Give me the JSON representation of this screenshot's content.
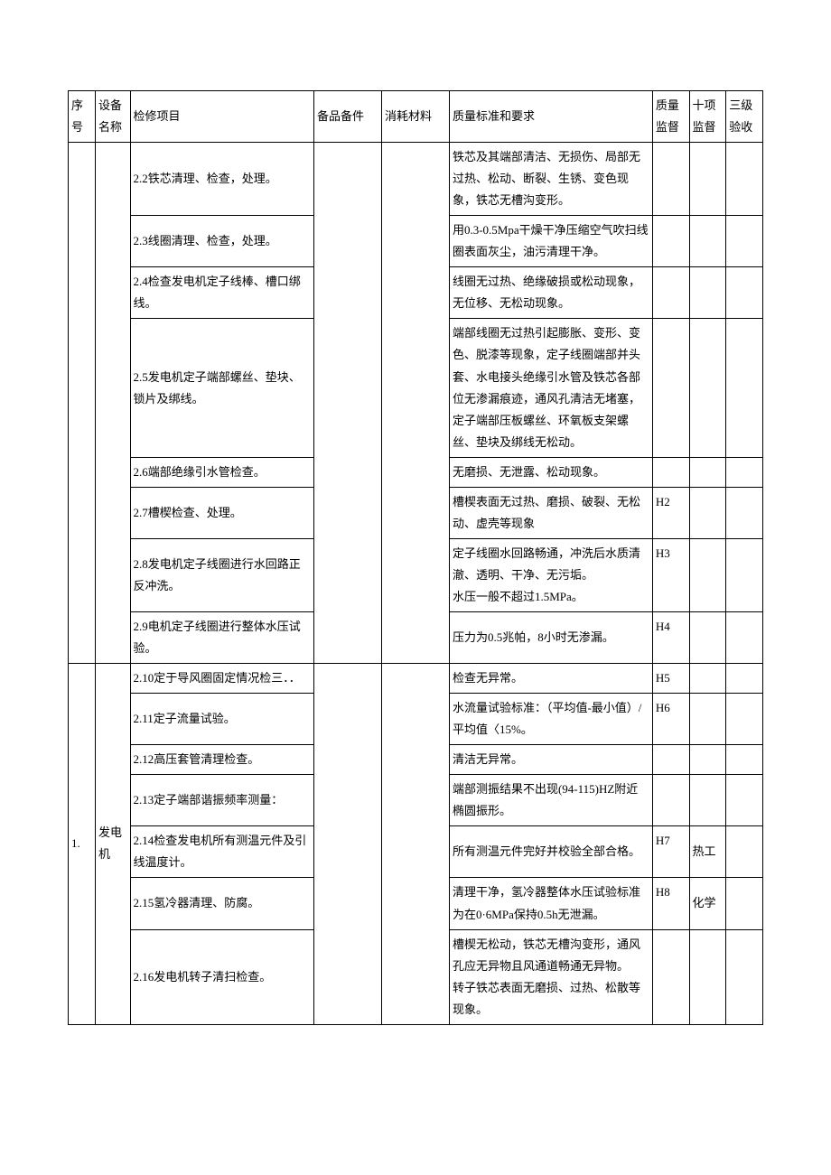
{
  "headers": {
    "seq": "序号",
    "dev": "设备名称",
    "item": "检修项目",
    "spare": "备品备件",
    "consume": "消耗材料",
    "std": "质量标准和要求",
    "q1": "质量监督",
    "q2": "十项监督",
    "q3": "三级验收"
  },
  "group1_seq": "",
  "group1_dev": "",
  "group2_seq": "1.",
  "group2_dev": "发电机",
  "rows": [
    {
      "item": "2.2铁芯清理、检查，处理。",
      "std": "铁芯及其端部清洁、无损伤、局部无过热、松动、断裂、生锈、变色现象，铁芯无槽沟变形。",
      "q1": "",
      "q2": "",
      "q3": ""
    },
    {
      "item": "2.3线圈清理、检查，处理。",
      "std": "用0.3-0.5Mpa干燥干净压缩空气吹扫线圈表面灰尘，油污清理干净。",
      "q1": "",
      "q2": "",
      "q3": ""
    },
    {
      "item": "2.4检查发电机定子线棒、槽口绑线。",
      "std": "线圈无过热、绝缘破损或松动现象，无位移、无松动现象。",
      "q1": "",
      "q2": "",
      "q3": ""
    },
    {
      "item": "2.5发电机定子端部螺丝、垫块、锁片及绑线。",
      "std": "端部线圈无过热引起膨胀、变形、变色、脱漆等现象，定子线圈端部并头套、水电接头绝缘引水管及铁芯各部位无渗漏痕迹，通风孔清洁无堵塞，定子端部压板螺丝、环氧板支架螺丝、垫块及绑线无松动。",
      "q1": "",
      "q2": "",
      "q3": ""
    },
    {
      "item": "2.6端部绝缘引水管检查。",
      "std": "无磨损、无泄露、松动现象。",
      "q1": "",
      "q2": "",
      "q3": ""
    },
    {
      "item": "2.7槽楔检查、处理。",
      "std": "槽楔表面无过热、磨损、破裂、无松动、虚壳等现象",
      "q1": "H2",
      "q2": "",
      "q3": ""
    },
    {
      "item": "2.8发电机定子线圈进行水回路正反冲洗。",
      "std": "定子线圈水回路畅通，冲洗后水质清澈、透明、干净、无污垢。\n水压一般不超过1.5MPa。",
      "q1": "H3",
      "q2": "",
      "q3": ""
    },
    {
      "item": "2.9电机定子线圈进行整体水压试验。",
      "std": "压力为0.5兆帕，8小时无渗漏。",
      "q1": "H4",
      "q2": "",
      "q3": ""
    },
    {
      "item": "2.10定于导风圈固定情况检三．．",
      "std": "检查无异常。",
      "q1": "H5",
      "q2": "",
      "q3": ""
    },
    {
      "item": "2.11定子流量试验。",
      "std": "水流量试验标准：（平均值-最小值）/平均值〈15%。",
      "q1": "H6",
      "q2": "",
      "q3": ""
    },
    {
      "item": "2.12高压套管清理检查。",
      "std": "清洁无异常。",
      "q1": "",
      "q2": "",
      "q3": ""
    },
    {
      "item": "2.13定子端部谐振频率测量：",
      "std": "端部测振结果不出现(94-115)HZ附近椭圆振形。",
      "q1": "",
      "q2": "",
      "q3": ""
    },
    {
      "item": "2.14检查发电机所有测温元件及引线温度计。",
      "std": "所有测温元件完好并校验全部合格。",
      "q1": "H7",
      "q2": "热工",
      "q3": ""
    },
    {
      "item": "2.15氢冷器清理、防腐。",
      "std": "清理干净，氢冷器整体水压试验标准为在0·6MPa保持0.5h无泄漏。",
      "q1": "H8",
      "q2": "化学",
      "q3": ""
    },
    {
      "item": "2.16发电机转子清扫检查。",
      "std": "槽楔无松动，铁芯无槽沟变形，通风孔应无异物且风通道畅通无异物。\n转子铁芯表面无磨损、过热、松散等现象。\n",
      "q1": "",
      "q2": "",
      "q3": ""
    }
  ]
}
